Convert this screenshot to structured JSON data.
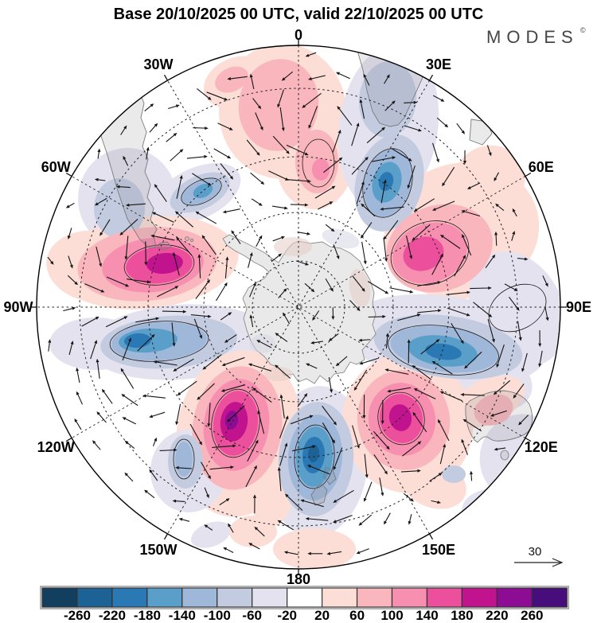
{
  "header": {
    "title": "Base 20/10/2025 00 UTC, valid 22/10/2025 00 UTC",
    "logo": "MODES",
    "logo_mark": "©"
  },
  "map": {
    "meridian_labels": [
      {
        "label": "0",
        "angle": 0
      },
      {
        "label": "30E",
        "angle": 30
      },
      {
        "label": "60E",
        "angle": 60
      },
      {
        "label": "90E",
        "angle": 90
      },
      {
        "label": "120E",
        "angle": 120
      },
      {
        "label": "150E",
        "angle": 150
      },
      {
        "label": "180",
        "angle": 180
      },
      {
        "label": "150W",
        "angle": 210
      },
      {
        "label": "120W",
        "angle": 240
      },
      {
        "label": "90W",
        "angle": 270
      },
      {
        "label": "60W",
        "angle": 300
      },
      {
        "label": "30W",
        "angle": 330
      }
    ],
    "reference_vector": {
      "label": "30"
    }
  },
  "colorbar": {
    "tick_labels": [
      "-260",
      "-220",
      "-180",
      "-140",
      "-100",
      "-60",
      "-20",
      "20",
      "60",
      "100",
      "140",
      "180",
      "220",
      "260"
    ],
    "colors": [
      "#123f5d",
      "#1d6294",
      "#2a79b5",
      "#599fc9",
      "#9fb7d8",
      "#c3cbe1",
      "#e4e2ef",
      "#ffffff",
      "#fcded7",
      "#f9b7bd",
      "#f78fb0",
      "#ec4f9c",
      "#c2138e",
      "#8d0c94",
      "#470d7b"
    ]
  },
  "chart_data": {
    "type": "heatmap",
    "title": "Base 20/10/2025 00 UTC, valid 22/10/2025 00 UTC",
    "description": "Southern-hemisphere polar stereographic map of a forecast anomaly field (filled contours) with anomaly wind vectors; dashed graticule every 30 degrees longitude and 4 dashed latitude circles; continents outlined in gray; Antarctica at the pole.",
    "projection": {
      "hemisphere": "south",
      "center": "South Pole",
      "meridian_labels": [
        "0",
        "30E",
        "60E",
        "90E",
        "120E",
        "150E",
        "180",
        "150W",
        "120W",
        "90W",
        "60W",
        "30W"
      ],
      "latitude_circles_dashed": 4,
      "grid": "dashed"
    },
    "colorbar": {
      "levels": [
        -260,
        -220,
        -180,
        -140,
        -100,
        -60,
        -20,
        20,
        60,
        100,
        140,
        180,
        220,
        260
      ],
      "colors": [
        "#123f5d",
        "#1d6294",
        "#2a79b5",
        "#599fc9",
        "#9fb7d8",
        "#c3cbe1",
        "#e4e2ef",
        "#ffffff",
        "#fcded7",
        "#f9b7bd",
        "#f78fb0",
        "#ec4f9c",
        "#c2138e",
        "#8d0c94",
        "#470d7b"
      ],
      "orientation": "horizontal-bottom"
    },
    "vector_reference": 30,
    "anomaly_centers_est": [
      {
        "approx_location": "45S 75W",
        "peak_est": 200,
        "sign": "positive"
      },
      {
        "approx_location": "55S 145W",
        "peak_est": 240,
        "sign": "positive"
      },
      {
        "approx_location": "55S 155E",
        "peak_est": 200,
        "sign": "positive"
      },
      {
        "approx_location": "45S 65E",
        "peak_est": 160,
        "sign": "positive"
      },
      {
        "approx_location": "25S 5W",
        "peak_est": 120,
        "sign": "positive"
      },
      {
        "approx_location": "35S 30W",
        "peak_est": 90,
        "sign": "positive"
      },
      {
        "approx_location": "58S 178E",
        "peak_est": -240,
        "sign": "negative"
      },
      {
        "approx_location": "38S 33E",
        "peak_est": -200,
        "sign": "negative"
      },
      {
        "approx_location": "62S 105W",
        "peak_est": -190,
        "sign": "negative"
      },
      {
        "approx_location": "60S 105E",
        "peak_est": -200,
        "sign": "negative"
      },
      {
        "approx_location": "33S 40W",
        "peak_est": -150,
        "sign": "negative"
      },
      {
        "approx_location": "45S 150W",
        "peak_est": -110,
        "sign": "negative"
      }
    ]
  }
}
